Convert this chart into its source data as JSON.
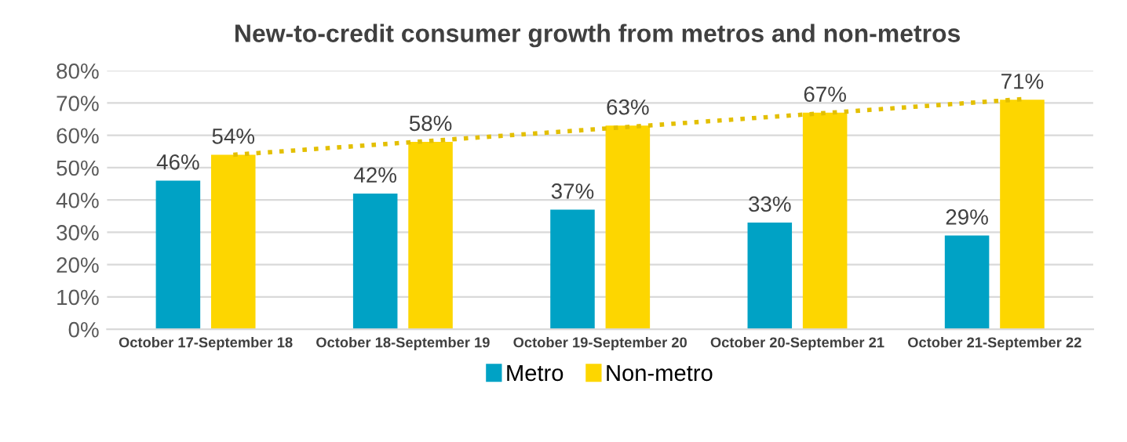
{
  "chart_data": {
    "type": "bar",
    "title": "New-to-credit consumer growth from metros and non-metros",
    "categories": [
      "October 17-September 18",
      "October 18-September 19",
      "October 19-September 20",
      "October 20-September 21",
      "October 21-September 22"
    ],
    "series": [
      {
        "name": "Metro",
        "color": "#00a2c5",
        "values": [
          46,
          42,
          37,
          33,
          29
        ],
        "value_labels": [
          "46%",
          "42%",
          "37%",
          "33%",
          "29%"
        ]
      },
      {
        "name": "Non-metro",
        "color": "#fdd600",
        "values": [
          54,
          58,
          63,
          67,
          71
        ],
        "value_labels": [
          "54%",
          "58%",
          "63%",
          "67%",
          "71%"
        ]
      },
      {
        "type": "line",
        "color": "#e3bf00",
        "line_style": "dotted",
        "values": [
          54,
          58.3,
          62.6,
          66.9,
          71.2
        ]
      }
    ],
    "ylim": [
      0,
      80
    ],
    "yticks": [
      {
        "value": 0,
        "label": "0%"
      },
      {
        "value": 10,
        "label": "10%"
      },
      {
        "value": 20,
        "label": "20%"
      },
      {
        "value": 30,
        "label": "30%"
      },
      {
        "value": 40,
        "label": "40%"
      },
      {
        "value": 50,
        "label": "50%"
      },
      {
        "value": 60,
        "label": "60%"
      },
      {
        "value": 70,
        "label": "70%"
      },
      {
        "value": 80,
        "label": "80%"
      }
    ],
    "grid": "y",
    "legend": "bottom"
  }
}
